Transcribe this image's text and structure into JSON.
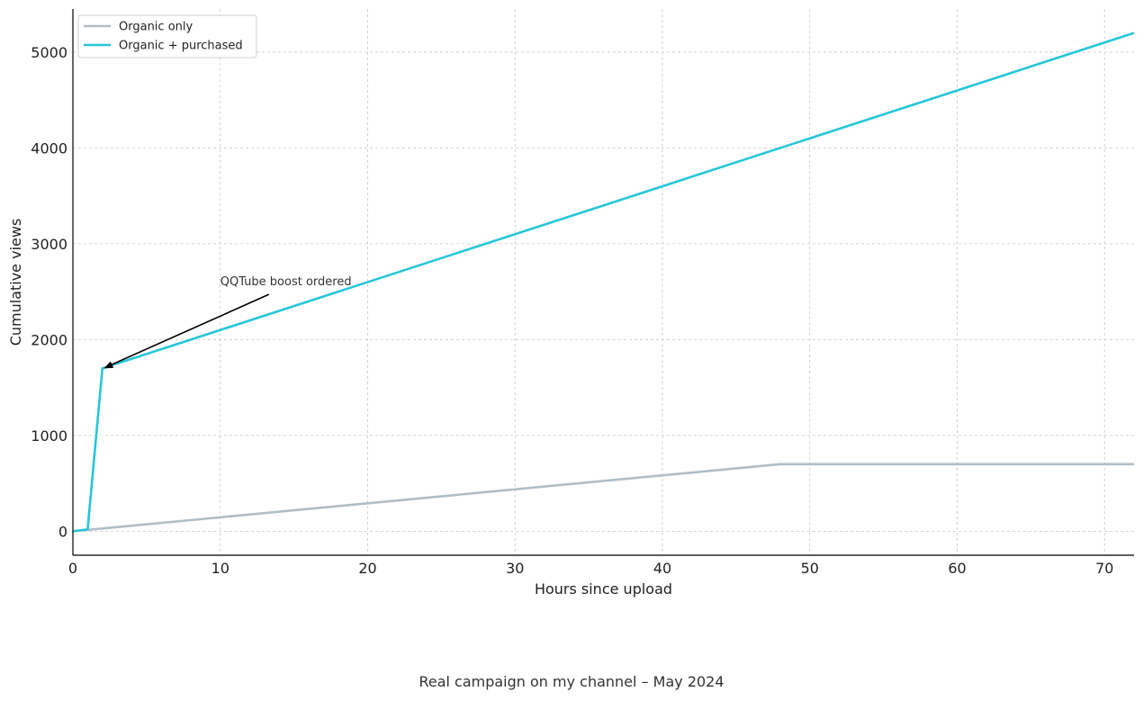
{
  "chart_data": {
    "type": "line",
    "xlabel": "Hours since upload",
    "ylabel": "Cumulative views",
    "xlim": [
      0,
      72
    ],
    "ylim": [
      -250,
      5450
    ],
    "xticks": [
      0,
      10,
      20,
      30,
      40,
      50,
      60,
      70
    ],
    "yticks": [
      0,
      1000,
      2000,
      3000,
      4000,
      5000
    ],
    "grid": true,
    "legend_position": "top-left",
    "series": [
      {
        "name": "Organic only",
        "color": "#b0bec5",
        "x": [
          0,
          48,
          72
        ],
        "y": [
          0,
          700,
          700
        ]
      },
      {
        "name": "Organic + purchased",
        "color": "#26c6da",
        "x": [
          0,
          1,
          2,
          72
        ],
        "y": [
          0,
          20,
          1700,
          5200
        ]
      }
    ],
    "annotations": [
      {
        "text": "QQTube boost ordered",
        "text_x": 10,
        "text_y": 2500,
        "point_x": 2.1,
        "point_y": 1700
      }
    ]
  },
  "caption": "Real campaign on my channel – May 2024"
}
